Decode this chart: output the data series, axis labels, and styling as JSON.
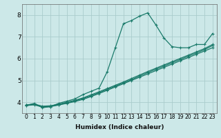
{
  "xlabel": "Humidex (Indice chaleur)",
  "ylabel": "",
  "bg_color": "#cce8e8",
  "grid_color": "#aacccc",
  "line_color": "#1a7a6a",
  "xlim": [
    -0.5,
    23.5
  ],
  "ylim": [
    3.5,
    8.5
  ],
  "xticks": [
    0,
    1,
    2,
    3,
    4,
    5,
    6,
    7,
    8,
    9,
    10,
    11,
    12,
    13,
    14,
    15,
    16,
    17,
    18,
    19,
    20,
    21,
    22,
    23
  ],
  "yticks": [
    4,
    5,
    6,
    7,
    8
  ],
  "line1_x": [
    0,
    1,
    2,
    3,
    4,
    5,
    6,
    7,
    8,
    9,
    10,
    11,
    12,
    13,
    14,
    15,
    16,
    17,
    18,
    19,
    20,
    21,
    22,
    23
  ],
  "line1_y": [
    3.85,
    3.95,
    3.75,
    3.8,
    3.95,
    4.05,
    4.15,
    4.35,
    4.5,
    4.65,
    5.4,
    6.5,
    7.6,
    7.75,
    7.95,
    8.1,
    7.55,
    6.95,
    6.55,
    6.5,
    6.5,
    6.65,
    6.65,
    7.15
  ],
  "line2_x": [
    0,
    1,
    2,
    3,
    4,
    5,
    6,
    7,
    8,
    9,
    10,
    11,
    12,
    13,
    14,
    15,
    16,
    17,
    18,
    19,
    20,
    21,
    22,
    23
  ],
  "line2_y": [
    3.85,
    3.88,
    3.78,
    3.8,
    3.87,
    3.95,
    4.03,
    4.13,
    4.26,
    4.4,
    4.55,
    4.7,
    4.85,
    5.0,
    5.15,
    5.3,
    5.45,
    5.6,
    5.75,
    5.9,
    6.05,
    6.2,
    6.35,
    6.5
  ],
  "line3_x": [
    0,
    1,
    2,
    3,
    4,
    5,
    6,
    7,
    8,
    9,
    10,
    11,
    12,
    13,
    14,
    15,
    16,
    17,
    18,
    19,
    20,
    21,
    22,
    23
  ],
  "line3_y": [
    3.87,
    3.9,
    3.8,
    3.82,
    3.89,
    3.97,
    4.06,
    4.17,
    4.3,
    4.44,
    4.59,
    4.74,
    4.89,
    5.04,
    5.2,
    5.36,
    5.51,
    5.66,
    5.81,
    5.96,
    6.11,
    6.26,
    6.41,
    6.6
  ],
  "line4_x": [
    0,
    1,
    2,
    3,
    4,
    5,
    6,
    7,
    8,
    9,
    10,
    11,
    12,
    13,
    14,
    15,
    16,
    17,
    18,
    19,
    20,
    21,
    22,
    23
  ],
  "line4_y": [
    3.88,
    3.92,
    3.82,
    3.84,
    3.91,
    4.0,
    4.09,
    4.2,
    4.34,
    4.48,
    4.63,
    4.78,
    4.93,
    5.09,
    5.25,
    5.41,
    5.56,
    5.71,
    5.86,
    6.01,
    6.16,
    6.31,
    6.46,
    6.65
  ],
  "marker": "+",
  "markersize": 3,
  "linewidth": 0.9,
  "xlabel_fontsize": 6.5,
  "tick_fontsize": 5.5,
  "ytick_fontsize": 6.5
}
